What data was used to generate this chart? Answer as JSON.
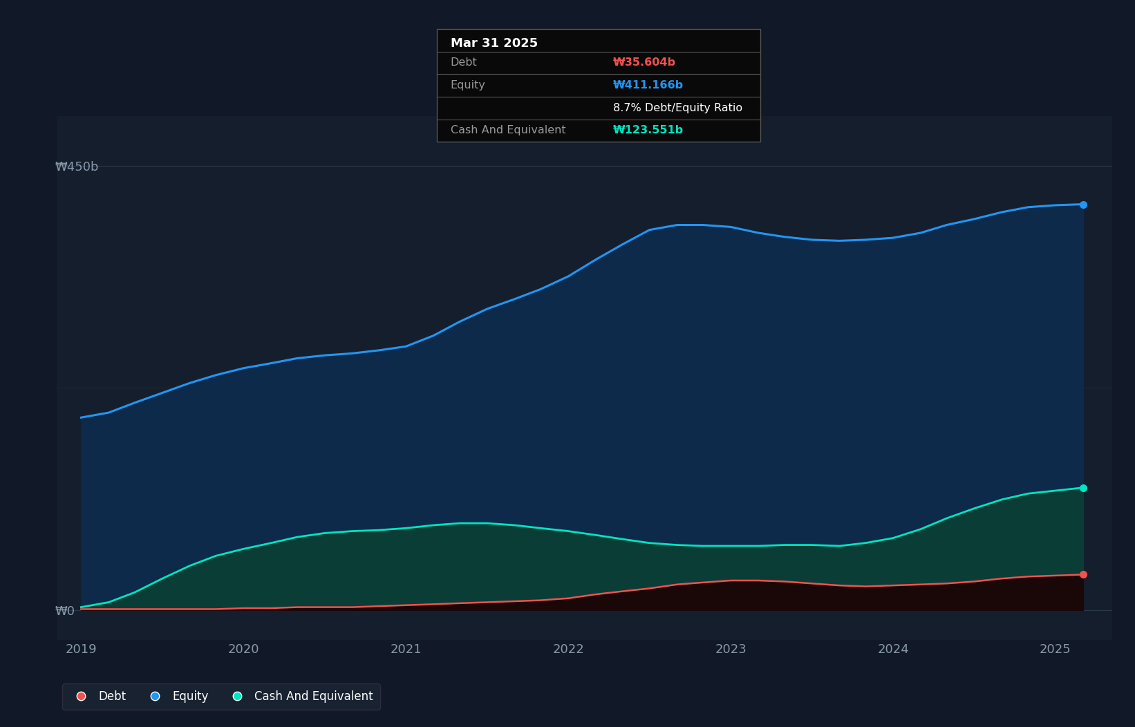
{
  "background_color": "#111827",
  "plot_bg_color": "#151e2d",
  "tooltip_title": "Mar 31 2025",
  "tooltip_debt_label": "Debt",
  "tooltip_debt_value": "₩35.604b",
  "tooltip_equity_label": "Equity",
  "tooltip_equity_value": "₩411.166b",
  "tooltip_ratio": "8.7% Debt/Equity Ratio",
  "tooltip_cash_label": "Cash And Equivalent",
  "tooltip_cash_value": "₩123.551b",
  "ylabel_top": "₩450b",
  "ylabel_zero": "₩0",
  "equity_color": "#2196f3",
  "debt_color": "#ef5350",
  "cash_color": "#00e5c3",
  "equity_fill": "#0d2a4a",
  "cash_fill": "#0a3d35",
  "debt_fill": "#1a0808",
  "years": [
    2019.0,
    2019.17,
    2019.33,
    2019.5,
    2019.67,
    2019.83,
    2020.0,
    2020.17,
    2020.33,
    2020.5,
    2020.67,
    2020.83,
    2021.0,
    2021.17,
    2021.33,
    2021.5,
    2021.67,
    2021.83,
    2022.0,
    2022.17,
    2022.33,
    2022.5,
    2022.67,
    2022.83,
    2023.0,
    2023.17,
    2023.33,
    2023.5,
    2023.67,
    2023.83,
    2024.0,
    2024.17,
    2024.33,
    2024.5,
    2024.67,
    2024.83,
    2025.0,
    2025.17
  ],
  "equity_values": [
    195,
    200,
    210,
    220,
    230,
    238,
    245,
    250,
    255,
    258,
    260,
    263,
    267,
    278,
    292,
    305,
    315,
    325,
    338,
    355,
    370,
    385,
    390,
    390,
    388,
    382,
    378,
    375,
    374,
    375,
    377,
    382,
    390,
    396,
    403,
    408,
    410,
    411
  ],
  "debt_values": [
    1,
    1,
    1,
    1,
    1,
    1,
    2,
    2,
    3,
    3,
    3,
    4,
    5,
    6,
    7,
    8,
    9,
    10,
    12,
    16,
    19,
    22,
    26,
    28,
    30,
    30,
    29,
    27,
    25,
    24,
    25,
    26,
    27,
    29,
    32,
    34,
    35,
    36
  ],
  "cash_values": [
    3,
    8,
    18,
    32,
    45,
    55,
    62,
    68,
    74,
    78,
    80,
    81,
    83,
    86,
    88,
    88,
    86,
    83,
    80,
    76,
    72,
    68,
    66,
    65,
    65,
    65,
    66,
    66,
    65,
    68,
    73,
    82,
    93,
    103,
    112,
    118,
    121,
    124
  ],
  "ylim_min": -30,
  "ylim_max": 500,
  "xlim_min": 2018.85,
  "xlim_max": 2025.35,
  "xticks": [
    2019,
    2020,
    2021,
    2022,
    2023,
    2024,
    2025
  ],
  "legend_labels": [
    "Debt",
    "Equity",
    "Cash And Equivalent"
  ],
  "legend_colors": [
    "#ef5350",
    "#2196f3",
    "#00e5c3"
  ]
}
